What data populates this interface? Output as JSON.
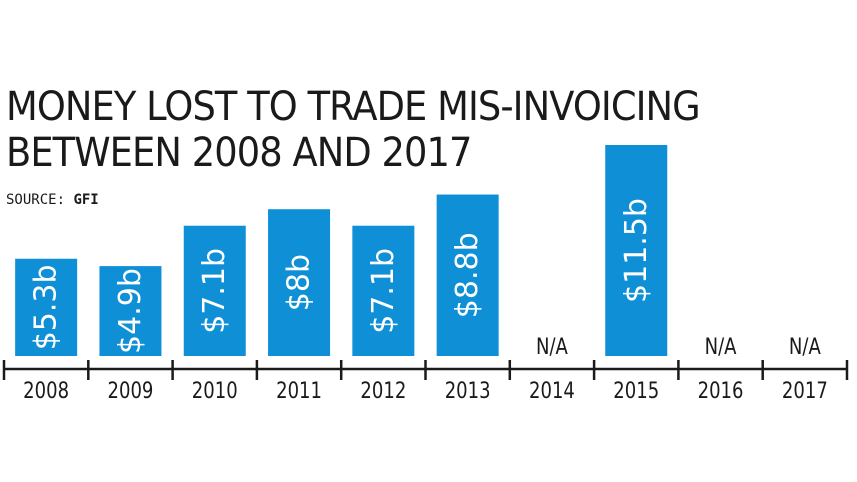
{
  "title_lines": [
    "MONEY LOST TO TRADE MIS-INVOICING",
    "BETWEEN 2008 AND 2017"
  ],
  "source_label": "SOURCE:",
  "source_name": "GFI",
  "colors": {
    "bar": "#0f8fd6",
    "label_inside": "#ffffff",
    "text": "#1a1a1a",
    "axis": "#1a1a1a"
  },
  "chart_data": {
    "type": "bar",
    "title": "MONEY LOST TO TRADE MIS-INVOICING BETWEEN 2008 AND 2017",
    "source": "GFI",
    "categories": [
      "2008",
      "2009",
      "2010",
      "2011",
      "2012",
      "2013",
      "2014",
      "2015",
      "2016",
      "2017"
    ],
    "values": [
      5.3,
      4.9,
      7.1,
      8,
      7.1,
      8.8,
      null,
      11.5,
      null,
      null
    ],
    "value_labels": [
      "$5.3b",
      "$4.9b",
      "$7.1b",
      "$8b",
      "$7.1b",
      "$8.8b",
      "N/A",
      "$11.5b",
      "N/A",
      "N/A"
    ],
    "unit": "billion US$",
    "ylim": [
      0,
      11.5
    ],
    "grid": false,
    "legend": "none"
  }
}
